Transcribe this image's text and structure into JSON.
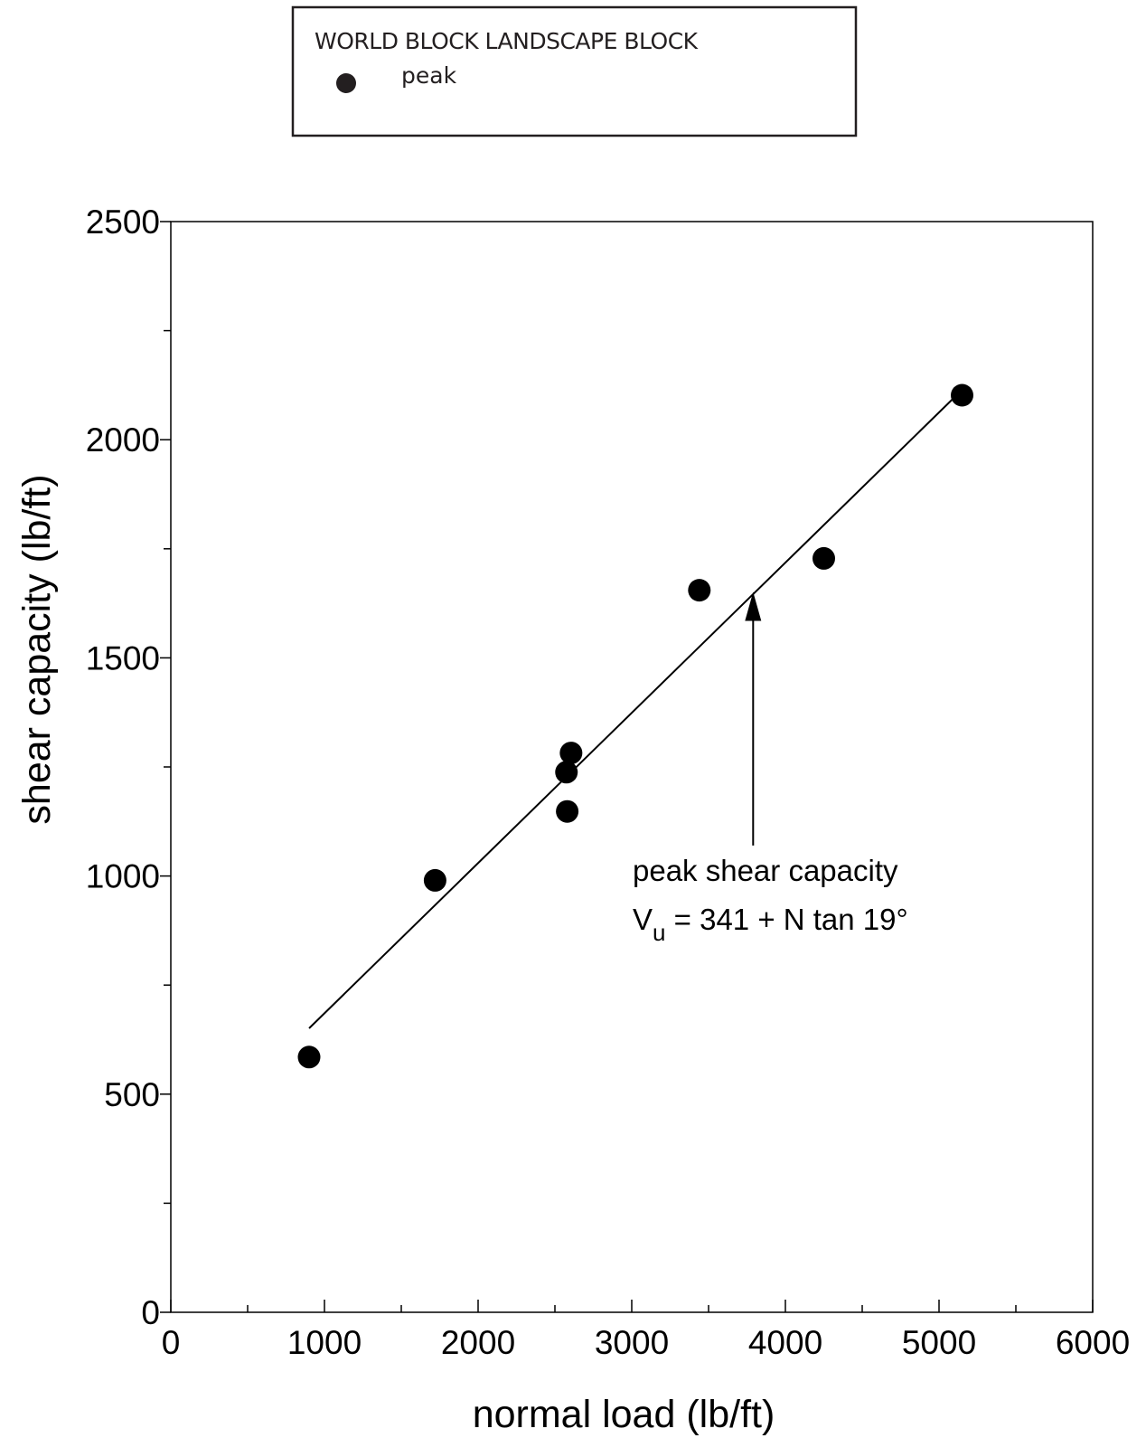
{
  "legend": {
    "title": "WORLD BLOCK LANDSCAPE BLOCK",
    "entries": [
      {
        "label": "peak",
        "marker": "filled-circle",
        "color": "#231f20"
      }
    ]
  },
  "chart_data": {
    "type": "scatter",
    "title": "",
    "xlabel": "normal load (lb/ft)",
    "ylabel": "shear capacity (lb/ft)",
    "xlim": [
      0,
      6000
    ],
    "ylim": [
      0,
      2500
    ],
    "x_ticks": [
      0,
      1000,
      2000,
      3000,
      4000,
      5000,
      6000
    ],
    "x_minor_ticks": [
      500,
      1500,
      2500,
      3500,
      4500,
      5500
    ],
    "y_ticks": [
      0,
      500,
      1000,
      1500,
      2000,
      2500
    ],
    "y_minor_ticks": [
      250,
      750,
      1250,
      1750,
      2250
    ],
    "grid": false,
    "legend_position": "top-center, outside plot",
    "series": [
      {
        "name": "peak",
        "marker": "filled-circle",
        "color": "#000000",
        "points": [
          {
            "x": 900,
            "y": 585
          },
          {
            "x": 1720,
            "y": 990
          },
          {
            "x": 2580,
            "y": 1148
          },
          {
            "x": 2575,
            "y": 1238
          },
          {
            "x": 2605,
            "y": 1282
          },
          {
            "x": 3440,
            "y": 1655
          },
          {
            "x": 4250,
            "y": 1728
          },
          {
            "x": 5150,
            "y": 2102
          }
        ]
      }
    ],
    "fit_line": {
      "label": "peak shear capacity",
      "intercept": 341,
      "angle_deg": 19,
      "x_start": 900,
      "x_end": 5100
    },
    "annotation": {
      "line1": "peak shear capacity",
      "eq_prefix": "V",
      "eq_subscript": "u",
      "eq_rest": " = 341 + N tan 19°",
      "arrow_target": {
        "x": 3790,
        "y": 1651
      },
      "arrow_tail": {
        "x": 3790,
        "y": 1070
      }
    }
  }
}
